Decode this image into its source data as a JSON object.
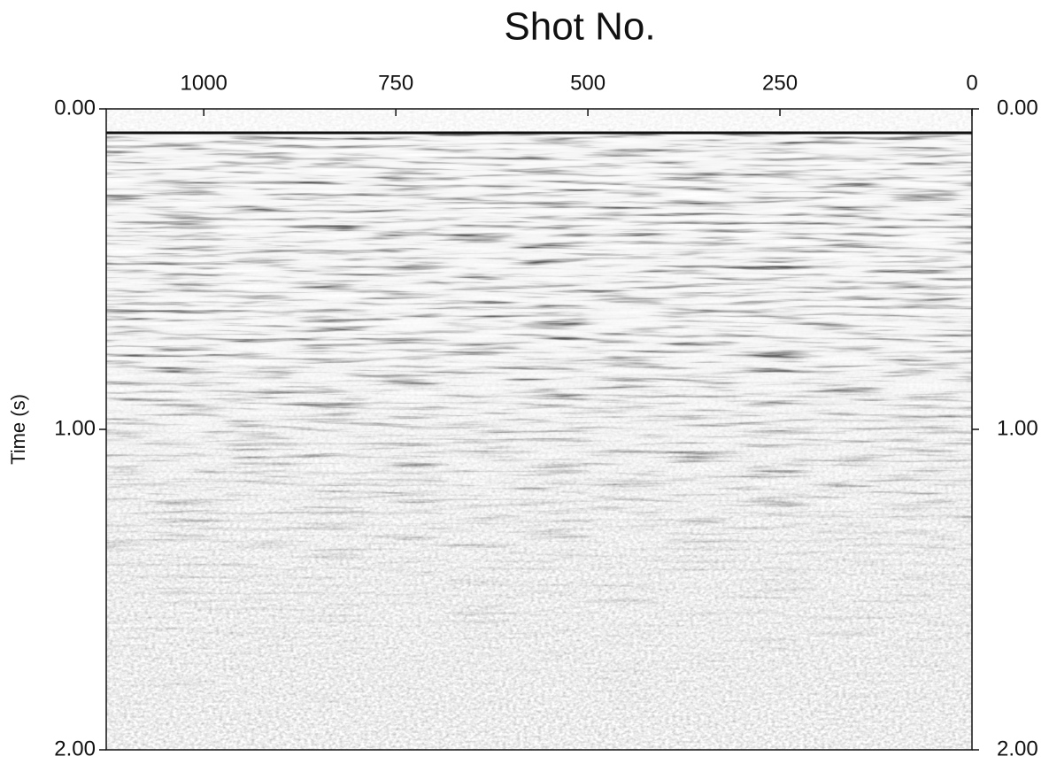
{
  "chart_data": {
    "type": "seismic-section",
    "title": "Shot No.",
    "y_label": "Time (s)",
    "xlim": [
      1127,
      0
    ],
    "xticks": [
      1000,
      750,
      500,
      250,
      0
    ],
    "ylim": [
      0,
      2
    ],
    "yticks": [
      {
        "value": 0,
        "label": "0.00"
      },
      {
        "value": 1,
        "label": "1.00"
      },
      {
        "value": 2,
        "label": "2.00"
      }
    ],
    "y2lim": [
      0,
      2
    ],
    "y2ticks": [
      {
        "value": 0,
        "label": "0.00"
      },
      {
        "value": 1,
        "label": "1.00"
      },
      {
        "value": 2,
        "label": "2.00"
      }
    ]
  }
}
